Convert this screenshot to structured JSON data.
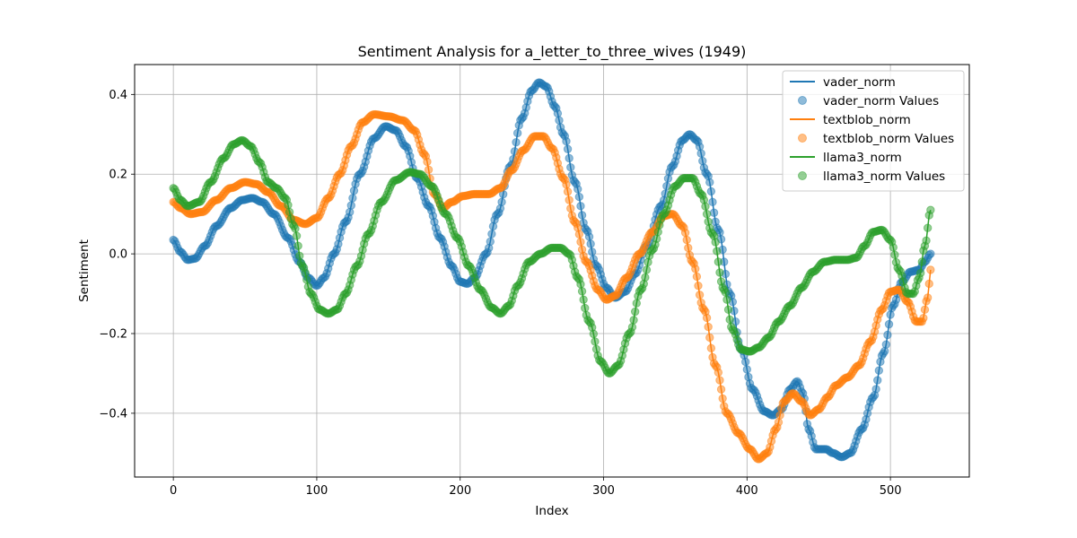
{
  "chart_data": {
    "type": "line",
    "title": "Sentiment Analysis for a_letter_to_three_wives (1949)",
    "xlabel": "Index",
    "ylabel": "Sentiment",
    "xlim": [
      -27,
      555
    ],
    "ylim": [
      -0.56,
      0.475
    ],
    "xticks": [
      0,
      100,
      200,
      300,
      400,
      500
    ],
    "yticks": [
      -0.4,
      -0.2,
      0.0,
      0.2,
      0.4
    ],
    "grid": true,
    "legend_position": "top-right",
    "point_count": 529,
    "legend": [
      {
        "label": "vader_norm",
        "kind": "line",
        "series": 0
      },
      {
        "label": "vader_norm Values",
        "kind": "marker",
        "series": 0
      },
      {
        "label": "textblob_norm",
        "kind": "line",
        "series": 1
      },
      {
        "label": "textblob_norm Values",
        "kind": "marker",
        "series": 1
      },
      {
        "label": "llama3_norm",
        "kind": "line",
        "series": 2
      },
      {
        "label": "llama3_norm Values",
        "kind": "marker",
        "series": 2
      }
    ],
    "series": [
      {
        "name": "vader_norm",
        "color": "#1f77b4",
        "keypoints": [
          [
            0,
            0.035
          ],
          [
            5,
            0.005
          ],
          [
            10,
            -0.015
          ],
          [
            15,
            -0.012
          ],
          [
            22,
            0.02
          ],
          [
            30,
            0.07
          ],
          [
            40,
            0.115
          ],
          [
            48,
            0.135
          ],
          [
            55,
            0.14
          ],
          [
            62,
            0.13
          ],
          [
            70,
            0.1
          ],
          [
            80,
            0.04
          ],
          [
            88,
            -0.02
          ],
          [
            94,
            -0.06
          ],
          [
            100,
            -0.08
          ],
          [
            105,
            -0.06
          ],
          [
            112,
            0.0
          ],
          [
            120,
            0.08
          ],
          [
            130,
            0.2
          ],
          [
            140,
            0.29
          ],
          [
            148,
            0.32
          ],
          [
            155,
            0.31
          ],
          [
            162,
            0.27
          ],
          [
            170,
            0.19
          ],
          [
            178,
            0.12
          ],
          [
            186,
            0.04
          ],
          [
            194,
            -0.03
          ],
          [
            200,
            -0.07
          ],
          [
            205,
            -0.075
          ],
          [
            210,
            -0.06
          ],
          [
            218,
            0.0
          ],
          [
            226,
            0.1
          ],
          [
            235,
            0.22
          ],
          [
            243,
            0.34
          ],
          [
            250,
            0.41
          ],
          [
            255,
            0.43
          ],
          [
            260,
            0.42
          ],
          [
            266,
            0.37
          ],
          [
            272,
            0.3
          ],
          [
            280,
            0.18
          ],
          [
            288,
            0.06
          ],
          [
            295,
            -0.03
          ],
          [
            302,
            -0.085
          ],
          [
            308,
            -0.11
          ],
          [
            315,
            -0.095
          ],
          [
            322,
            -0.05
          ],
          [
            330,
            0.02
          ],
          [
            340,
            0.12
          ],
          [
            348,
            0.22
          ],
          [
            355,
            0.285
          ],
          [
            360,
            0.3
          ],
          [
            365,
            0.285
          ],
          [
            372,
            0.2
          ],
          [
            380,
            0.06
          ],
          [
            388,
            -0.1
          ],
          [
            396,
            -0.24
          ],
          [
            404,
            -0.34
          ],
          [
            412,
            -0.395
          ],
          [
            418,
            -0.405
          ],
          [
            424,
            -0.39
          ],
          [
            430,
            -0.34
          ],
          [
            435,
            -0.32
          ],
          [
            439,
            -0.35
          ],
          [
            443,
            -0.44
          ],
          [
            448,
            -0.49
          ],
          [
            455,
            -0.49
          ],
          [
            460,
            -0.5
          ],
          [
            466,
            -0.51
          ],
          [
            472,
            -0.5
          ],
          [
            480,
            -0.44
          ],
          [
            488,
            -0.36
          ],
          [
            495,
            -0.25
          ],
          [
            502,
            -0.13
          ],
          [
            508,
            -0.07
          ],
          [
            514,
            -0.045
          ],
          [
            520,
            -0.04
          ],
          [
            524,
            -0.02
          ],
          [
            528,
            0.0
          ]
        ]
      },
      {
        "name": "textblob_norm",
        "color": "#ff7f0e",
        "keypoints": [
          [
            0,
            0.13
          ],
          [
            5,
            0.115
          ],
          [
            12,
            0.1
          ],
          [
            20,
            0.105
          ],
          [
            30,
            0.135
          ],
          [
            40,
            0.165
          ],
          [
            50,
            0.18
          ],
          [
            58,
            0.175
          ],
          [
            66,
            0.155
          ],
          [
            75,
            0.12
          ],
          [
            84,
            0.085
          ],
          [
            92,
            0.075
          ],
          [
            100,
            0.09
          ],
          [
            108,
            0.14
          ],
          [
            116,
            0.2
          ],
          [
            124,
            0.27
          ],
          [
            132,
            0.33
          ],
          [
            140,
            0.35
          ],
          [
            150,
            0.345
          ],
          [
            160,
            0.335
          ],
          [
            168,
            0.31
          ],
          [
            175,
            0.25
          ],
          [
            182,
            0.15
          ],
          [
            188,
            0.115
          ],
          [
            194,
            0.13
          ],
          [
            202,
            0.145
          ],
          [
            210,
            0.15
          ],
          [
            220,
            0.15
          ],
          [
            228,
            0.165
          ],
          [
            236,
            0.21
          ],
          [
            244,
            0.26
          ],
          [
            252,
            0.295
          ],
          [
            258,
            0.295
          ],
          [
            264,
            0.265
          ],
          [
            272,
            0.19
          ],
          [
            280,
            0.08
          ],
          [
            288,
            -0.02
          ],
          [
            296,
            -0.09
          ],
          [
            302,
            -0.115
          ],
          [
            308,
            -0.105
          ],
          [
            316,
            -0.06
          ],
          [
            325,
            0.0
          ],
          [
            334,
            0.055
          ],
          [
            342,
            0.095
          ],
          [
            348,
            0.1
          ],
          [
            355,
            0.07
          ],
          [
            362,
            -0.02
          ],
          [
            370,
            -0.14
          ],
          [
            378,
            -0.28
          ],
          [
            386,
            -0.4
          ],
          [
            394,
            -0.45
          ],
          [
            402,
            -0.49
          ],
          [
            408,
            -0.515
          ],
          [
            414,
            -0.5
          ],
          [
            420,
            -0.44
          ],
          [
            426,
            -0.37
          ],
          [
            432,
            -0.35
          ],
          [
            438,
            -0.37
          ],
          [
            444,
            -0.405
          ],
          [
            450,
            -0.39
          ],
          [
            456,
            -0.36
          ],
          [
            462,
            -0.33
          ],
          [
            470,
            -0.31
          ],
          [
            478,
            -0.28
          ],
          [
            486,
            -0.22
          ],
          [
            494,
            -0.14
          ],
          [
            500,
            -0.095
          ],
          [
            506,
            -0.09
          ],
          [
            512,
            -0.12
          ],
          [
            518,
            -0.17
          ],
          [
            522,
            -0.17
          ],
          [
            526,
            -0.11
          ],
          [
            528,
            -0.04
          ]
        ]
      },
      {
        "name": "llama3_norm",
        "color": "#2ca02c",
        "keypoints": [
          [
            0,
            0.165
          ],
          [
            5,
            0.135
          ],
          [
            10,
            0.12
          ],
          [
            18,
            0.13
          ],
          [
            26,
            0.18
          ],
          [
            35,
            0.24
          ],
          [
            42,
            0.275
          ],
          [
            48,
            0.285
          ],
          [
            54,
            0.27
          ],
          [
            60,
            0.23
          ],
          [
            66,
            0.18
          ],
          [
            72,
            0.165
          ],
          [
            78,
            0.14
          ],
          [
            84,
            0.07
          ],
          [
            90,
            -0.03
          ],
          [
            96,
            -0.1
          ],
          [
            102,
            -0.14
          ],
          [
            108,
            -0.15
          ],
          [
            114,
            -0.14
          ],
          [
            120,
            -0.1
          ],
          [
            128,
            -0.03
          ],
          [
            136,
            0.05
          ],
          [
            145,
            0.13
          ],
          [
            155,
            0.185
          ],
          [
            165,
            0.205
          ],
          [
            172,
            0.2
          ],
          [
            180,
            0.17
          ],
          [
            190,
            0.1
          ],
          [
            198,
            0.04
          ],
          [
            206,
            -0.03
          ],
          [
            214,
            -0.09
          ],
          [
            222,
            -0.135
          ],
          [
            228,
            -0.15
          ],
          [
            234,
            -0.13
          ],
          [
            240,
            -0.08
          ],
          [
            248,
            -0.02
          ],
          [
            256,
            0.0
          ],
          [
            264,
            0.015
          ],
          [
            270,
            0.015
          ],
          [
            276,
            0.0
          ],
          [
            282,
            -0.06
          ],
          [
            290,
            -0.17
          ],
          [
            298,
            -0.27
          ],
          [
            304,
            -0.3
          ],
          [
            310,
            -0.28
          ],
          [
            318,
            -0.2
          ],
          [
            326,
            -0.09
          ],
          [
            334,
            0.01
          ],
          [
            342,
            0.1
          ],
          [
            350,
            0.17
          ],
          [
            356,
            0.19
          ],
          [
            362,
            0.19
          ],
          [
            368,
            0.15
          ],
          [
            376,
            0.05
          ],
          [
            384,
            -0.09
          ],
          [
            390,
            -0.19
          ],
          [
            396,
            -0.24
          ],
          [
            402,
            -0.245
          ],
          [
            408,
            -0.235
          ],
          [
            415,
            -0.21
          ],
          [
            422,
            -0.17
          ],
          [
            430,
            -0.13
          ],
          [
            438,
            -0.085
          ],
          [
            446,
            -0.045
          ],
          [
            454,
            -0.02
          ],
          [
            462,
            -0.015
          ],
          [
            470,
            -0.015
          ],
          [
            476,
            -0.01
          ],
          [
            482,
            0.02
          ],
          [
            488,
            0.055
          ],
          [
            494,
            0.06
          ],
          [
            500,
            0.035
          ],
          [
            506,
            -0.04
          ],
          [
            512,
            -0.1
          ],
          [
            516,
            -0.1
          ],
          [
            520,
            -0.06
          ],
          [
            524,
            0.02
          ],
          [
            528,
            0.11
          ]
        ]
      }
    ]
  }
}
